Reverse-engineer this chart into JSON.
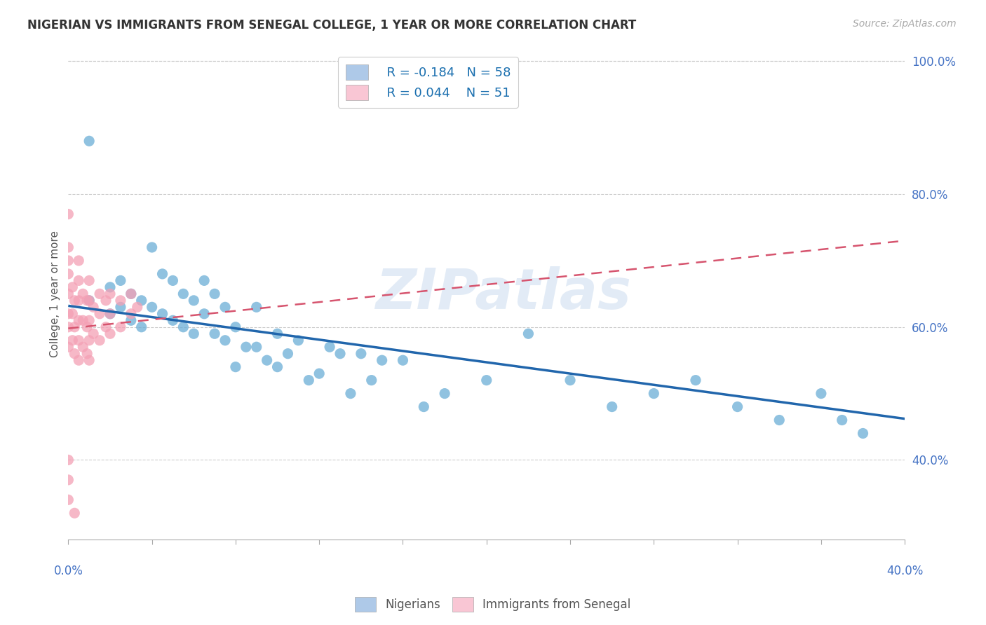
{
  "title": "NIGERIAN VS IMMIGRANTS FROM SENEGAL COLLEGE, 1 YEAR OR MORE CORRELATION CHART",
  "source": "Source: ZipAtlas.com",
  "ylabel": "College, 1 year or more",
  "xlim": [
    0.0,
    0.4
  ],
  "ylim": [
    0.28,
    1.02
  ],
  "yticks": [
    0.4,
    0.6,
    0.8,
    1.0
  ],
  "ytick_labels": [
    "40.0%",
    "60.0%",
    "80.0%",
    "100.0%"
  ],
  "watermark": "ZIPatlas",
  "blue_color": "#6baed6",
  "blue_face": "#aec9e8",
  "pink_color": "#f4a0b5",
  "pink_face": "#f9c6d4",
  "blue_line_color": "#2166ac",
  "pink_line_color": "#d6546e",
  "nigerian_x": [
    0.01,
    0.01,
    0.02,
    0.02,
    0.025,
    0.025,
    0.03,
    0.03,
    0.035,
    0.035,
    0.04,
    0.04,
    0.045,
    0.045,
    0.05,
    0.05,
    0.055,
    0.055,
    0.06,
    0.06,
    0.065,
    0.065,
    0.07,
    0.07,
    0.075,
    0.075,
    0.08,
    0.08,
    0.085,
    0.09,
    0.09,
    0.095,
    0.1,
    0.1,
    0.105,
    0.11,
    0.115,
    0.12,
    0.125,
    0.13,
    0.135,
    0.14,
    0.145,
    0.15,
    0.16,
    0.17,
    0.18,
    0.2,
    0.22,
    0.24,
    0.26,
    0.28,
    0.3,
    0.32,
    0.34,
    0.36,
    0.37,
    0.38
  ],
  "nigerian_y": [
    0.88,
    0.64,
    0.66,
    0.62,
    0.67,
    0.63,
    0.65,
    0.61,
    0.64,
    0.6,
    0.72,
    0.63,
    0.68,
    0.62,
    0.67,
    0.61,
    0.65,
    0.6,
    0.64,
    0.59,
    0.67,
    0.62,
    0.65,
    0.59,
    0.63,
    0.58,
    0.6,
    0.54,
    0.57,
    0.63,
    0.57,
    0.55,
    0.59,
    0.54,
    0.56,
    0.58,
    0.52,
    0.53,
    0.57,
    0.56,
    0.5,
    0.56,
    0.52,
    0.55,
    0.55,
    0.48,
    0.5,
    0.52,
    0.59,
    0.52,
    0.48,
    0.5,
    0.52,
    0.48,
    0.46,
    0.5,
    0.46,
    0.44
  ],
  "senegal_x": [
    0.0,
    0.0,
    0.0,
    0.0,
    0.0,
    0.0,
    0.0,
    0.0,
    0.002,
    0.002,
    0.002,
    0.003,
    0.003,
    0.003,
    0.005,
    0.005,
    0.005,
    0.005,
    0.005,
    0.005,
    0.007,
    0.007,
    0.007,
    0.009,
    0.009,
    0.009,
    0.01,
    0.01,
    0.01,
    0.01,
    0.01,
    0.012,
    0.012,
    0.015,
    0.015,
    0.015,
    0.018,
    0.018,
    0.02,
    0.02,
    0.02,
    0.025,
    0.025,
    0.03,
    0.03,
    0.033,
    0.0,
    0.0,
    0.0,
    0.003
  ],
  "senegal_y": [
    0.77,
    0.72,
    0.7,
    0.68,
    0.65,
    0.62,
    0.6,
    0.57,
    0.66,
    0.62,
    0.58,
    0.64,
    0.6,
    0.56,
    0.7,
    0.67,
    0.64,
    0.61,
    0.58,
    0.55,
    0.65,
    0.61,
    0.57,
    0.64,
    0.6,
    0.56,
    0.67,
    0.64,
    0.61,
    0.58,
    0.55,
    0.63,
    0.59,
    0.65,
    0.62,
    0.58,
    0.64,
    0.6,
    0.65,
    0.62,
    0.59,
    0.64,
    0.6,
    0.65,
    0.62,
    0.63,
    0.4,
    0.37,
    0.34,
    0.32
  ],
  "blue_trend_x": [
    0.0,
    0.4
  ],
  "blue_trend_y": [
    0.632,
    0.462
  ],
  "pink_trend_x": [
    0.0,
    0.4
  ],
  "pink_trend_y": [
    0.598,
    0.73
  ]
}
